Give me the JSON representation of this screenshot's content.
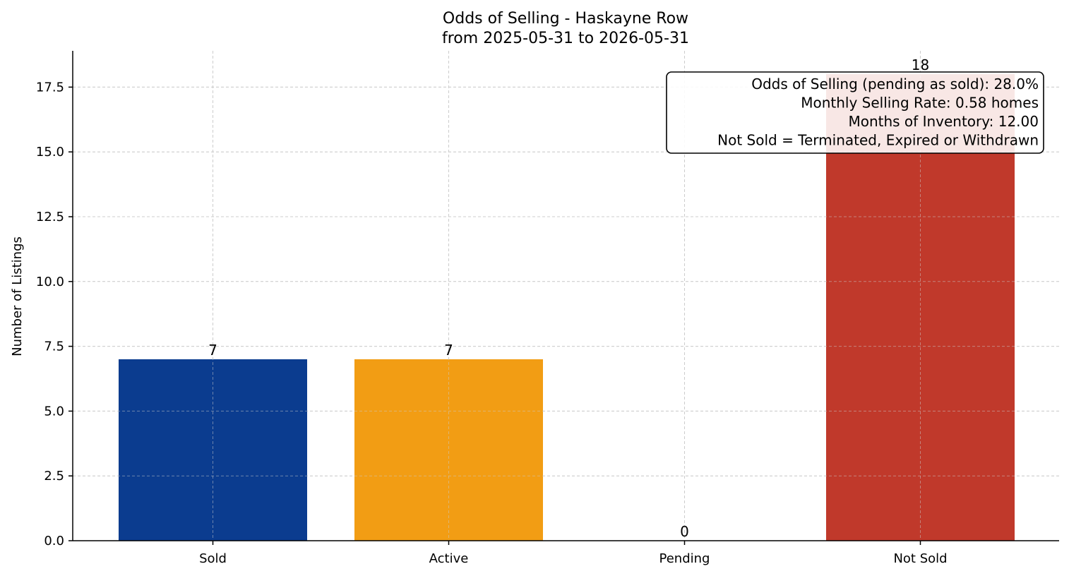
{
  "chart_data": {
    "type": "bar",
    "title": "Odds of Selling - Haskayne Row",
    "subtitle": "from 2025-05-31 to 2026-05-31",
    "categories": [
      "Sold",
      "Active",
      "Pending",
      "Not Sold"
    ],
    "values": [
      7,
      7,
      0,
      18
    ],
    "value_labels": [
      "7",
      "7",
      "0",
      "18"
    ],
    "colors": [
      "#0b3c8f",
      "#f29d14",
      "#9e9e9e",
      "#c0392b"
    ],
    "xlabel": "",
    "ylabel": "Number of Listings",
    "ylim": [
      0,
      18.9
    ],
    "yticks": [
      0,
      2.5,
      5,
      7.5,
      10,
      12.5,
      15,
      17.5
    ],
    "ytick_labels": [
      "0.0",
      "2.5",
      "5.0",
      "7.5",
      "10.0",
      "12.5",
      "15.0",
      "17.5"
    ],
    "grid": true,
    "annotation": {
      "placement": "top-right",
      "lines": [
        "Odds of Selling (pending as sold): 28.0%",
        "Monthly Selling Rate: 0.58 homes",
        "Months of Inventory: 12.00",
        "Not Sold = Terminated, Expired or Withdrawn"
      ]
    }
  }
}
